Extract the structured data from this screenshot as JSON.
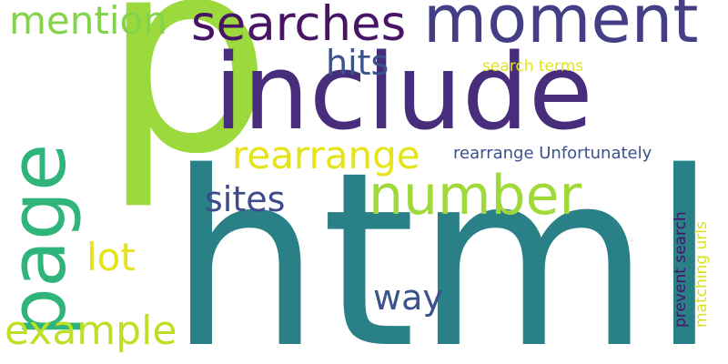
{
  "words": {
    "html": {
      "text": "html",
      "color": "#2a8087"
    },
    "p": {
      "text": "p",
      "color": "#9bd93c"
    },
    "include": {
      "text": "include",
      "color": "#472d7b"
    },
    "moment": {
      "text": "moment",
      "color": "#433e85"
    },
    "searches": {
      "text": "searches",
      "color": "#471466"
    },
    "mention": {
      "text": "mention",
      "color": "#84d44b"
    },
    "page": {
      "text": "page",
      "color": "#2fb47c"
    },
    "hits": {
      "text": "hits",
      "color": "#3b528b"
    },
    "search_terms": {
      "text": "search terms",
      "color": "#e2e418"
    },
    "rearrange_big": {
      "text": "rearrange",
      "color": "#e5e419"
    },
    "rearrange_unfortunately": {
      "text": "rearrange Unfortunately",
      "color": "#3b528b"
    },
    "number": {
      "text": "number",
      "color": "#a0da39"
    },
    "sites": {
      "text": "sites",
      "color": "#3e4a89"
    },
    "lot": {
      "text": "lot",
      "color": "#e5e419"
    },
    "way": {
      "text": "way",
      "color": "#3b528b"
    },
    "example": {
      "text": "example",
      "color": "#bddf26"
    },
    "prevent_search": {
      "text": "prevent search",
      "color": "#471466"
    },
    "matching_urls": {
      "text": "matching urls",
      "color": "#d8e219"
    }
  }
}
